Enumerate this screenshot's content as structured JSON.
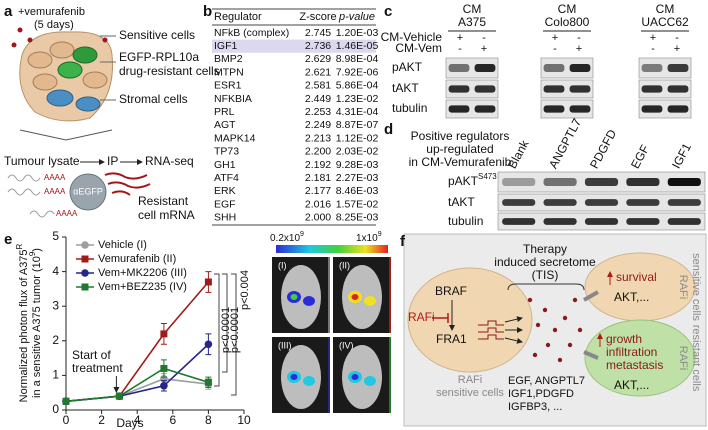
{
  "panel_labels": [
    "a",
    "b",
    "c",
    "d",
    "e",
    "f"
  ],
  "panel_a": {
    "treatment": "+vemurafenib",
    "duration": "(5 days)",
    "sensitive": "Sensitive cells",
    "resistant": [
      "EGFP-RPL10a",
      "drug-resistant cells"
    ],
    "stromal": "Stromal cells",
    "workflow": [
      "Tumour lysate",
      "IP",
      "RNA-seq"
    ],
    "polya": "AAAA",
    "antibody": "αEGFP",
    "output": [
      "Resistant",
      "cell mRNA"
    ]
  },
  "panel_b": {
    "header": [
      "Regulator",
      "Z-score",
      "p-value"
    ],
    "rows": [
      [
        "NFkB (complex)",
        "2.745",
        "1.20E-03"
      ],
      [
        "IGF1",
        "2.736",
        "1.46E-05"
      ],
      [
        "BMP2",
        "2.629",
        "8.98E-04"
      ],
      [
        "MTPN",
        "2.621",
        "7.92E-06"
      ],
      [
        "ESR1",
        "2.581",
        "5.86E-04"
      ],
      [
        "NFKBIA",
        "2.449",
        "1.23E-02"
      ],
      [
        "PRL",
        "2.253",
        "4.31E-04"
      ],
      [
        "AGT",
        "2.249",
        "8.87E-07"
      ],
      [
        "MAPK14",
        "2.213",
        "1.12E-02"
      ],
      [
        "TP73",
        "2.200",
        "2.03E-02"
      ],
      [
        "GH1",
        "2.192",
        "9.28E-03"
      ],
      [
        "ATF4",
        "2.181",
        "2.27E-03"
      ],
      [
        "ERK",
        "2.177",
        "8.46E-03"
      ],
      [
        "EGF",
        "2.016",
        "1.57E-02"
      ],
      [
        "SHH",
        "2.000",
        "8.25E-03"
      ]
    ],
    "highlight_row": 1
  },
  "panel_c": {
    "groups": [
      [
        "CM",
        "A375"
      ],
      [
        "CM",
        "Colo800"
      ],
      [
        "CM",
        "UACC62"
      ]
    ],
    "conditions": [
      "CM-Vehicle",
      "CM-Vem"
    ],
    "vehicle_signs": [
      "+",
      "-"
    ],
    "vem_signs": [
      "-",
      "+"
    ],
    "blots": [
      "pAKT",
      "tAKT",
      "tubulin"
    ]
  },
  "panel_d": {
    "caption": [
      "Positive regulators",
      "up-regulated",
      "in CM-Vemurafenib"
    ],
    "lanes": [
      "Blank",
      "ANGPTL7",
      "PDGFD",
      "EGF",
      "IGF1"
    ],
    "blots": [
      "pAKT",
      "tAKT",
      "tubulin"
    ],
    "pakt_site": "S473"
  },
  "panel_e": {
    "type": "line",
    "xlabel": "Days",
    "ylabel": [
      "Normalized photon flux of A375",
      "R",
      "in a sensitive A375 tumor (10",
      "9",
      ")"
    ],
    "x": [
      0,
      3,
      5.5,
      8
    ],
    "series": [
      {
        "name": "Vehicle (I)",
        "color": "#9e9e9e",
        "marker": "circle",
        "values": [
          0.25,
          0.4,
          0.9,
          0.75
        ],
        "errors": [
          0.05,
          0.05,
          0.15,
          0.15
        ]
      },
      {
        "name": "Vemurafenib (II)",
        "color": "#a11b1b",
        "marker": "square",
        "values": [
          0.25,
          0.4,
          2.2,
          3.7
        ],
        "errors": [
          0.05,
          0.05,
          0.3,
          0.3
        ]
      },
      {
        "name": "Vem+MK2206 (III)",
        "color": "#26268a",
        "marker": "circle",
        "values": [
          0.25,
          0.4,
          0.7,
          1.9
        ],
        "errors": [
          0.05,
          0.05,
          0.15,
          0.3
        ]
      },
      {
        "name": "Vem+BEZ235 (IV)",
        "color": "#1f7a2e",
        "marker": "square",
        "values": [
          0.25,
          0.4,
          1.2,
          0.8
        ],
        "errors": [
          0.05,
          0.05,
          0.25,
          0.15
        ]
      }
    ],
    "xlim": [
      0,
      10
    ],
    "xticks": [
      0,
      2,
      4,
      6,
      8,
      10
    ],
    "ylim": [
      0,
      5
    ],
    "yticks": [
      0,
      1,
      2,
      3,
      4,
      5
    ],
    "annotation": [
      "Start of",
      "treatment"
    ],
    "pvalues": [
      "p<0.0001",
      "p<0.0001",
      "p<0.004"
    ],
    "imaging": {
      "scale": [
        "0.2x10",
        "9",
        "1x10",
        "9"
      ],
      "mice": [
        "(I)",
        "(II)",
        "(III)",
        "(IV)"
      ]
    }
  },
  "panel_f": {
    "tis": [
      "Therapy",
      "induced secretome",
      "(TIS)"
    ],
    "braf": "BRAF",
    "rafi": "RAFi",
    "fra1": "FRA1",
    "left_cell": [
      "RAFi",
      "sensitive cells"
    ],
    "survival": "survival",
    "akt": "AKT,...",
    "right_top_cell": [
      "RAFi",
      "sensitive cells"
    ],
    "growth": [
      "growth",
      "infiltration",
      "metastasis"
    ],
    "right_bottom_cell": [
      "RAFi",
      "resistant cells"
    ],
    "factors": [
      "EGF, ANGPTL7",
      "IGF1,PDGFD",
      "IGFBP3, ..."
    ]
  }
}
